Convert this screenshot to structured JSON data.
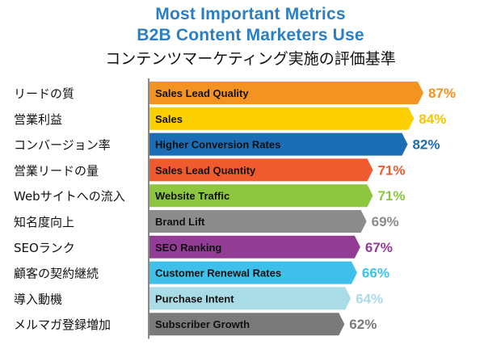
{
  "chart_data": {
    "type": "bar",
    "orientation": "horizontal",
    "title": "Most Important Metrics",
    "subtitle": "B2B Content Marketers Use",
    "title_ja": "コンテンツマーケティング実施の評価基準",
    "categories_ja": [
      "リードの質",
      "営業利益",
      "コンバージョン率",
      "営業リードの量",
      "Webサイトへの流入",
      "知名度向上",
      "SEOランク",
      "顧客の契約継続",
      "導入動機",
      "メルマガ登録増加"
    ],
    "categories": [
      "Sales Lead Quality",
      "Sales",
      "Higher Conversion Rates",
      "Sales Lead Quantity",
      "Website Traffic",
      "Brand Lift",
      "SEO Ranking",
      "Customer Renewal Rates",
      "Purchase Intent",
      "Subscriber Growth"
    ],
    "values": [
      87,
      84,
      82,
      71,
      71,
      69,
      67,
      66,
      64,
      62
    ],
    "value_labels": [
      "87%",
      "84%",
      "82%",
      "71%",
      "71%",
      "69%",
      "67%",
      "66%",
      "64%",
      "62%"
    ],
    "colors": [
      "#f39322",
      "#fcd000",
      "#1b6db5",
      "#ef5b2e",
      "#8dc63f",
      "#8c8c8c",
      "#923c96",
      "#3fc0ea",
      "#a9dce6",
      "#7a7a7a"
    ],
    "value_colors": [
      "#f39322",
      "#f5c400",
      "#1b6db5",
      "#ef5b2e",
      "#8dc63f",
      "#8c8c8c",
      "#923c96",
      "#3fc0ea",
      "#a9dce6",
      "#7a7a7a"
    ],
    "xlim": [
      0,
      87
    ],
    "grid": false,
    "legend": "none"
  },
  "colors": {
    "title": "#2a7fc4",
    "axis": "#111111"
  }
}
